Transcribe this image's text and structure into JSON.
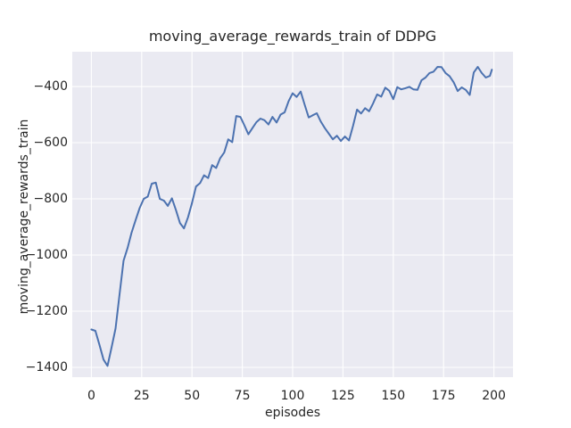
{
  "chart_data": {
    "type": "line",
    "title": "moving_average_rewards_train of DDPG",
    "xlabel": "episodes",
    "ylabel": "moving_average_rewards_train",
    "xlim": [
      -9.5,
      209.5
    ],
    "ylim": [
      -1435,
      -276
    ],
    "grid": true,
    "legend": false,
    "styles": {
      "plot_bg": "#eaeaf2",
      "grid_color": "#ffffff",
      "line_color": "#4c72b0",
      "text_color": "#262626",
      "figure_bg": "#ffffff"
    },
    "x_ticks": [
      {
        "value": 0,
        "label": "0"
      },
      {
        "value": 25,
        "label": "25"
      },
      {
        "value": 50,
        "label": "50"
      },
      {
        "value": 75,
        "label": "75"
      },
      {
        "value": 100,
        "label": "100"
      },
      {
        "value": 125,
        "label": "125"
      },
      {
        "value": 150,
        "label": "150"
      },
      {
        "value": 175,
        "label": "175"
      },
      {
        "value": 200,
        "label": "200"
      }
    ],
    "y_ticks": [
      {
        "value": -400,
        "label": "−400"
      },
      {
        "value": -600,
        "label": "−600"
      },
      {
        "value": -800,
        "label": "−800"
      },
      {
        "value": -1000,
        "label": "−1000"
      },
      {
        "value": -1200,
        "label": "−1200"
      },
      {
        "value": -1400,
        "label": "−1400"
      }
    ],
    "series": [
      {
        "name": "moving_average_rewards_train",
        "x": [
          0,
          2,
          4,
          6,
          8,
          10,
          12,
          14,
          16,
          18,
          20,
          22,
          24,
          26,
          28,
          30,
          32,
          34,
          36,
          38,
          40,
          42,
          44,
          46,
          48,
          50,
          52,
          54,
          56,
          58,
          60,
          62,
          64,
          66,
          68,
          70,
          72,
          74,
          76,
          78,
          80,
          82,
          84,
          86,
          88,
          90,
          92,
          94,
          96,
          98,
          100,
          102,
          104,
          106,
          108,
          110,
          112,
          114,
          116,
          118,
          120,
          122,
          124,
          126,
          128,
          130,
          132,
          134,
          136,
          138,
          140,
          142,
          144,
          146,
          148,
          150,
          152,
          154,
          156,
          158,
          160,
          162,
          164,
          166,
          168,
          170,
          172,
          174,
          176,
          178,
          180,
          182,
          184,
          186,
          188,
          190,
          192,
          194,
          196,
          198,
          199
        ],
        "y": [
          -1265,
          -1270,
          -1320,
          -1372,
          -1395,
          -1330,
          -1262,
          -1140,
          -1020,
          -975,
          -920,
          -875,
          -832,
          -800,
          -792,
          -746,
          -742,
          -800,
          -806,
          -825,
          -798,
          -840,
          -886,
          -905,
          -866,
          -815,
          -756,
          -744,
          -716,
          -726,
          -680,
          -690,
          -655,
          -635,
          -588,
          -598,
          -505,
          -508,
          -538,
          -570,
          -548,
          -527,
          -514,
          -520,
          -535,
          -508,
          -528,
          -500,
          -492,
          -452,
          -424,
          -437,
          -418,
          -465,
          -510,
          -502,
          -495,
          -525,
          -548,
          -568,
          -588,
          -575,
          -594,
          -578,
          -592,
          -540,
          -482,
          -496,
          -477,
          -488,
          -460,
          -428,
          -436,
          -404,
          -415,
          -445,
          -402,
          -410,
          -406,
          -401,
          -410,
          -412,
          -378,
          -368,
          -352,
          -347,
          -330,
          -331,
          -352,
          -363,
          -385,
          -416,
          -403,
          -412,
          -430,
          -350,
          -330,
          -352,
          -368,
          -362,
          -340
        ]
      }
    ]
  }
}
